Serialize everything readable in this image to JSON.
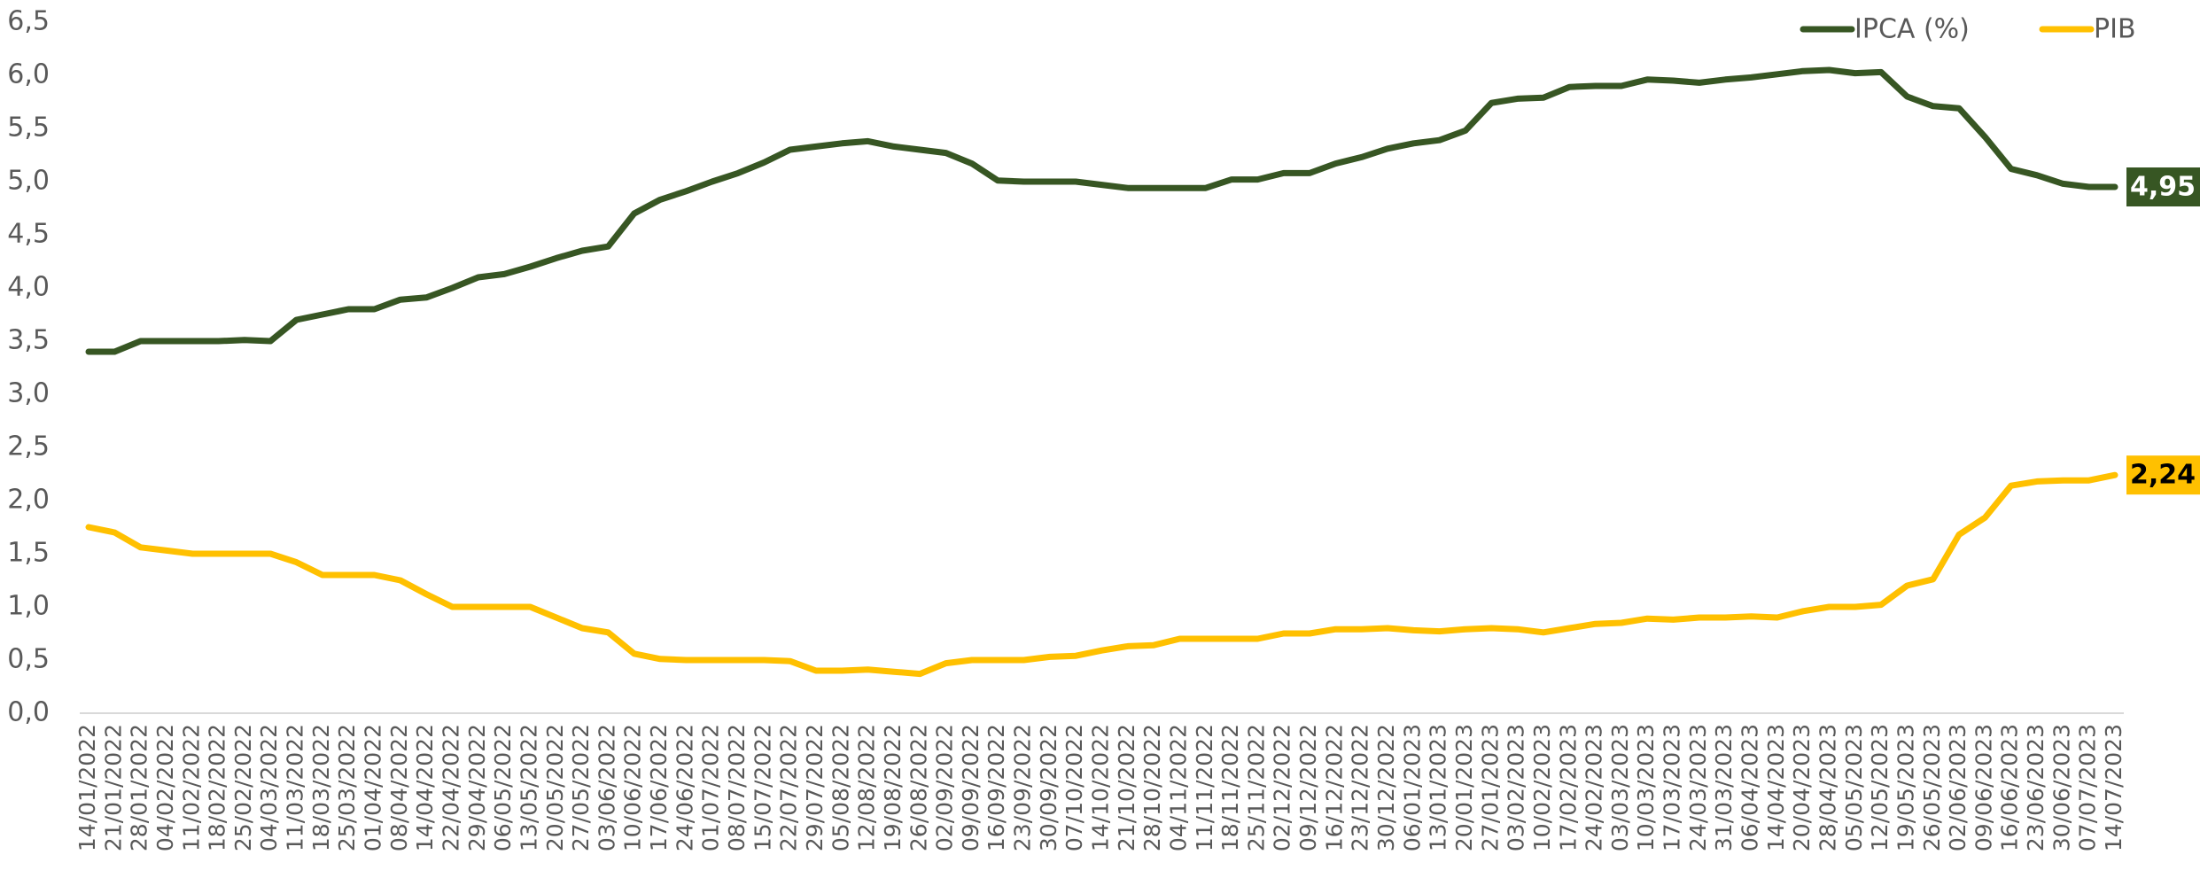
{
  "chart_data": {
    "type": "line",
    "categories": [
      "14/01/2022",
      "21/01/2022",
      "28/01/2022",
      "04/02/2022",
      "11/02/2022",
      "18/02/2022",
      "25/02/2022",
      "04/03/2022",
      "11/03/2022",
      "18/03/2022",
      "25/03/2022",
      "01/04/2022",
      "08/04/2022",
      "14/04/2022",
      "22/04/2022",
      "29/04/2022",
      "06/05/2022",
      "13/05/2022",
      "20/05/2022",
      "27/05/2022",
      "03/06/2022",
      "10/06/2022",
      "17/06/2022",
      "24/06/2022",
      "01/07/2022",
      "08/07/2022",
      "15/07/2022",
      "22/07/2022",
      "29/07/2022",
      "05/08/2022",
      "12/08/2022",
      "19/08/2022",
      "26/08/2022",
      "02/09/2022",
      "09/09/2022",
      "16/09/2022",
      "23/09/2022",
      "30/09/2022",
      "07/10/2022",
      "14/10/2022",
      "21/10/2022",
      "28/10/2022",
      "04/11/2022",
      "11/11/2022",
      "18/11/2022",
      "25/11/2022",
      "02/12/2022",
      "09/12/2022",
      "16/12/2022",
      "23/12/2022",
      "30/12/2022",
      "06/01/2023",
      "13/01/2023",
      "20/01/2023",
      "27/01/2023",
      "03/02/2023",
      "10/02/2023",
      "17/02/2023",
      "24/02/2023",
      "03/03/2023",
      "10/03/2023",
      "17/03/2023",
      "24/03/2023",
      "31/03/2023",
      "06/04/2023",
      "14/04/2023",
      "20/04/2023",
      "28/04/2023",
      "05/05/2023",
      "12/05/2023",
      "19/05/2023",
      "26/05/2023",
      "02/06/2023",
      "09/06/2023",
      "16/06/2023",
      "23/06/2023",
      "30/06/2023",
      "07/07/2023",
      "14/07/2023"
    ],
    "series": [
      {
        "name": "IPCA (%)",
        "color": "#375623",
        "values": [
          3.4,
          3.4,
          3.5,
          3.5,
          3.5,
          3.5,
          3.51,
          3.5,
          3.7,
          3.75,
          3.8,
          3.8,
          3.89,
          3.91,
          4.0,
          4.1,
          4.13,
          4.2,
          4.28,
          4.35,
          4.39,
          4.7,
          4.83,
          4.91,
          5.0,
          5.08,
          5.18,
          5.3,
          5.33,
          5.36,
          5.38,
          5.33,
          5.3,
          5.27,
          5.17,
          5.01,
          5.0,
          5.0,
          5.0,
          4.97,
          4.94,
          4.94,
          4.94,
          4.94,
          5.02,
          5.02,
          5.08,
          5.08,
          5.17,
          5.23,
          5.31,
          5.36,
          5.39,
          5.48,
          5.74,
          5.78,
          5.79,
          5.89,
          5.9,
          5.9,
          5.96,
          5.95,
          5.93,
          5.96,
          5.98,
          6.01,
          6.04,
          6.05,
          6.02,
          6.03,
          5.8,
          5.71,
          5.69,
          5.42,
          5.12,
          5.06,
          4.98,
          4.95,
          4.95
        ],
        "value_labels": [
          null,
          null,
          null,
          null,
          null,
          null,
          null,
          null,
          null,
          null,
          null,
          null,
          null,
          null,
          null,
          null,
          null,
          null,
          null,
          null,
          null,
          null,
          null,
          null,
          null,
          null,
          null,
          null,
          null,
          null,
          null,
          null,
          null,
          null,
          null,
          null,
          null,
          null,
          null,
          null,
          null,
          null,
          null,
          null,
          null,
          null,
          null,
          null,
          null,
          null,
          null,
          null,
          null,
          null,
          null,
          null,
          null,
          null,
          null,
          null,
          null,
          null,
          null,
          null,
          null,
          null,
          null,
          null,
          null,
          null,
          null,
          null,
          null,
          null,
          null,
          null,
          null,
          null,
          "4,95"
        ]
      },
      {
        "name": "PIB",
        "color": "#ffc000",
        "values": [
          1.75,
          1.7,
          1.56,
          1.53,
          1.5,
          1.5,
          1.5,
          1.5,
          1.42,
          1.3,
          1.3,
          1.3,
          1.25,
          1.12,
          1.0,
          1.0,
          1.0,
          1.0,
          0.9,
          0.8,
          0.76,
          0.56,
          0.51,
          0.5,
          0.5,
          0.5,
          0.5,
          0.49,
          0.4,
          0.4,
          0.41,
          0.39,
          0.37,
          0.47,
          0.5,
          0.5,
          0.5,
          0.53,
          0.54,
          0.59,
          0.63,
          0.64,
          0.7,
          0.7,
          0.7,
          0.7,
          0.75,
          0.75,
          0.79,
          0.79,
          0.8,
          0.78,
          0.77,
          0.79,
          0.8,
          0.79,
          0.76,
          0.8,
          0.84,
          0.85,
          0.89,
          0.88,
          0.9,
          0.9,
          0.91,
          0.9,
          0.96,
          1.0,
          1.0,
          1.02,
          1.2,
          1.26,
          1.68,
          1.84,
          2.14,
          2.18,
          2.19,
          2.19,
          2.24
        ],
        "value_labels": [
          null,
          null,
          null,
          null,
          null,
          null,
          null,
          null,
          null,
          null,
          null,
          null,
          null,
          null,
          null,
          null,
          null,
          null,
          null,
          null,
          null,
          null,
          null,
          null,
          null,
          null,
          null,
          null,
          null,
          null,
          null,
          null,
          null,
          null,
          null,
          null,
          null,
          null,
          null,
          null,
          null,
          null,
          null,
          null,
          null,
          null,
          null,
          null,
          null,
          null,
          null,
          null,
          null,
          null,
          null,
          null,
          null,
          null,
          null,
          null,
          null,
          null,
          null,
          null,
          null,
          null,
          null,
          null,
          null,
          null,
          null,
          null,
          null,
          null,
          null,
          null,
          null,
          null,
          "2,24"
        ]
      }
    ],
    "ylim": [
      0,
      6.5
    ],
    "yticks": [
      {
        "value": 0,
        "label": "0,0"
      },
      {
        "value": 0.5,
        "label": "0,5"
      },
      {
        "value": 1,
        "label": "1,0"
      },
      {
        "value": 1.5,
        "label": "1,5"
      },
      {
        "value": 2,
        "label": "2,0"
      },
      {
        "value": 2.5,
        "label": "2,5"
      },
      {
        "value": 3,
        "label": "3,0"
      },
      {
        "value": 3.5,
        "label": "3,5"
      },
      {
        "value": 4,
        "label": "4,0"
      },
      {
        "value": 4.5,
        "label": "4,5"
      },
      {
        "value": 5,
        "label": "5,0"
      },
      {
        "value": 5.5,
        "label": "5,5"
      },
      {
        "value": 6,
        "label": "6,0"
      },
      {
        "value": 6.5,
        "label": "6,5"
      }
    ],
    "grid": false,
    "legend": "top-right"
  }
}
